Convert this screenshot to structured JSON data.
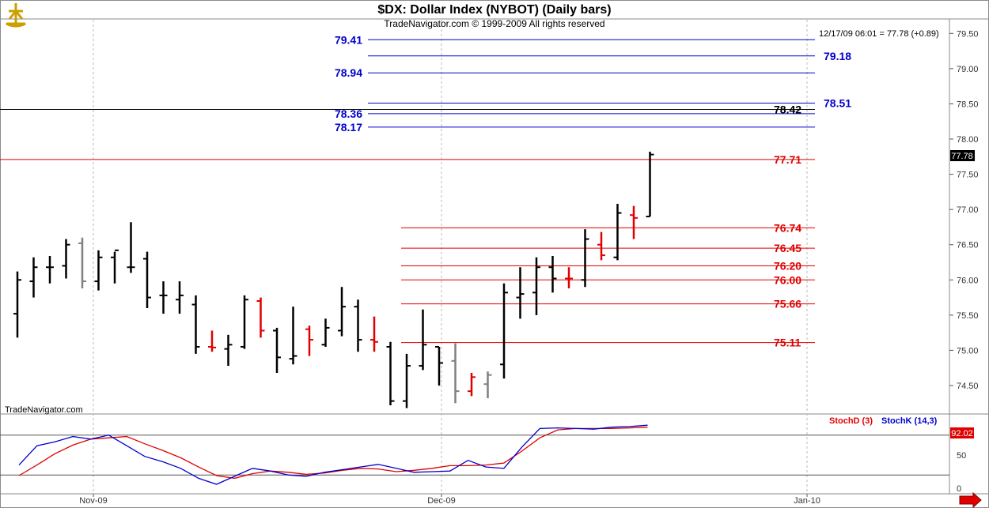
{
  "header": {
    "title": "$DX:  Dollar Index (NYBOT)  (Daily bars)",
    "subtitle": "TradeNavigator.com © 1999-2009 All rights reserved",
    "quote": "12/17/09 06:01 = 77.78 (+0.89)",
    "watermark": "TradeNavigator.com",
    "last_price_tag": "77.78",
    "logo_icon": "trading-ship-icon",
    "scroll_arrow_icon": "right-arrow-icon"
  },
  "colors": {
    "up_bar": "#000000",
    "unchanged_bar": "#808080",
    "down_bar": "#e00000",
    "blue_level": "#0000cc",
    "red_level": "#e00000",
    "black_level": "#000000",
    "stochD": "#e00000",
    "stochK": "#0000cc",
    "price_tag_bg": "#000000",
    "stoch_tag_bg": "#e00000"
  },
  "chart_data": [
    {
      "type": "ohlc",
      "title": "$DX:  Dollar Index (NYBOT)  (Daily bars)",
      "x_tick_labels": [
        "Nov-09",
        "Dec-09",
        "Jan-10"
      ],
      "ylim": [
        74.1,
        79.55
      ],
      "y_ticks": [
        "79.50",
        "79.00",
        "78.50",
        "78.00",
        "77.50",
        "77.00",
        "76.50",
        "76.00",
        "75.50",
        "75.00",
        "74.50"
      ],
      "grid": true,
      "bars": [
        {
          "x": 1,
          "o": 75.52,
          "h": 76.12,
          "l": 75.18,
          "c": 76.0,
          "color": "black"
        },
        {
          "x": 2,
          "o": 75.98,
          "h": 76.32,
          "l": 75.75,
          "c": 76.18,
          "color": "black"
        },
        {
          "x": 3,
          "o": 76.18,
          "h": 76.34,
          "l": 75.95,
          "c": 76.18,
          "color": "black"
        },
        {
          "x": 4,
          "o": 76.2,
          "h": 76.58,
          "l": 76.02,
          "c": 76.5,
          "color": "black"
        },
        {
          "x": 5,
          "o": 76.52,
          "h": 76.6,
          "l": 75.88,
          "c": 75.98,
          "color": "gray"
        },
        {
          "x": 6,
          "o": 75.98,
          "h": 76.42,
          "l": 75.85,
          "c": 76.32,
          "color": "black"
        },
        {
          "x": 7,
          "o": 76.32,
          "h": 76.4,
          "l": 75.95,
          "c": 76.42,
          "color": "black"
        },
        {
          "x": 8,
          "o": 76.18,
          "h": 76.82,
          "l": 76.1,
          "c": 76.18,
          "color": "black"
        },
        {
          "x": 9,
          "o": 76.3,
          "h": 76.4,
          "l": 75.6,
          "c": 75.75,
          "color": "black"
        },
        {
          "x": 10,
          "o": 75.78,
          "h": 75.98,
          "l": 75.52,
          "c": 75.78,
          "color": "black"
        },
        {
          "x": 11,
          "o": 75.72,
          "h": 75.98,
          "l": 75.52,
          "c": 75.78,
          "color": "black"
        },
        {
          "x": 12,
          "o": 75.65,
          "h": 75.78,
          "l": 74.95,
          "c": 75.05,
          "color": "black"
        },
        {
          "x": 13,
          "o": 75.05,
          "h": 75.28,
          "l": 74.98,
          "c": 75.04,
          "color": "red"
        },
        {
          "x": 14,
          "o": 75.02,
          "h": 75.22,
          "l": 74.78,
          "c": 75.08,
          "color": "black"
        },
        {
          "x": 15,
          "o": 75.05,
          "h": 75.78,
          "l": 75.02,
          "c": 75.72,
          "color": "black"
        },
        {
          "x": 16,
          "o": 75.7,
          "h": 75.75,
          "l": 75.18,
          "c": 75.28,
          "color": "red"
        },
        {
          "x": 17,
          "o": 75.28,
          "h": 75.32,
          "l": 74.68,
          "c": 74.9,
          "color": "black"
        },
        {
          "x": 18,
          "o": 74.88,
          "h": 75.62,
          "l": 74.8,
          "c": 74.92,
          "color": "black"
        },
        {
          "x": 19,
          "o": 75.3,
          "h": 75.35,
          "l": 74.92,
          "c": 75.15,
          "color": "red"
        },
        {
          "x": 20,
          "o": 75.08,
          "h": 75.45,
          "l": 75.05,
          "c": 75.32,
          "color": "black"
        },
        {
          "x": 21,
          "o": 75.28,
          "h": 75.9,
          "l": 75.2,
          "c": 75.62,
          "color": "black"
        },
        {
          "x": 22,
          "o": 75.62,
          "h": 75.72,
          "l": 74.98,
          "c": 75.15,
          "color": "black"
        },
        {
          "x": 23,
          "o": 75.15,
          "h": 75.48,
          "l": 74.98,
          "c": 75.12,
          "color": "red"
        },
        {
          "x": 24,
          "o": 75.05,
          "h": 75.12,
          "l": 74.22,
          "c": 74.28,
          "color": "black"
        },
        {
          "x": 25,
          "o": 74.28,
          "h": 74.95,
          "l": 74.18,
          "c": 74.78,
          "color": "black"
        },
        {
          "x": 26,
          "o": 74.78,
          "h": 75.58,
          "l": 74.72,
          "c": 75.08,
          "color": "black"
        },
        {
          "x": 27,
          "o": 75.05,
          "h": 75.05,
          "l": 74.5,
          "c": 74.82,
          "color": "black"
        },
        {
          "x": 28,
          "o": 74.85,
          "h": 75.1,
          "l": 74.25,
          "c": 74.42,
          "color": "gray"
        },
        {
          "x": 29,
          "o": 74.42,
          "h": 74.68,
          "l": 74.35,
          "c": 74.62,
          "color": "red"
        },
        {
          "x": 30,
          "o": 74.52,
          "h": 74.7,
          "l": 74.32,
          "c": 74.65,
          "color": "gray"
        },
        {
          "x": 31,
          "o": 74.8,
          "h": 75.95,
          "l": 74.6,
          "c": 75.82,
          "color": "black"
        },
        {
          "x": 32,
          "o": 75.75,
          "h": 76.18,
          "l": 75.45,
          "c": 75.8,
          "color": "black"
        },
        {
          "x": 33,
          "o": 75.82,
          "h": 76.32,
          "l": 75.5,
          "c": 76.18,
          "color": "black"
        },
        {
          "x": 34,
          "o": 76.18,
          "h": 76.34,
          "l": 75.82,
          "c": 76.02,
          "color": "black"
        },
        {
          "x": 35,
          "o": 76.02,
          "h": 76.18,
          "l": 75.88,
          "c": 76.02,
          "color": "red"
        },
        {
          "x": 36,
          "o": 76.0,
          "h": 76.72,
          "l": 75.9,
          "c": 76.58,
          "color": "black"
        },
        {
          "x": 37,
          "o": 76.5,
          "h": 76.68,
          "l": 76.28,
          "c": 76.35,
          "color": "red"
        },
        {
          "x": 38,
          "o": 76.32,
          "h": 77.08,
          "l": 76.28,
          "c": 76.95,
          "color": "black"
        },
        {
          "x": 39,
          "o": 76.92,
          "h": 77.05,
          "l": 76.58,
          "c": 76.88,
          "color": "red"
        },
        {
          "x": 40,
          "o": 76.9,
          "h": 77.82,
          "l": 76.9,
          "c": 77.78,
          "color": "black"
        }
      ],
      "levels": [
        {
          "value": 79.41,
          "label": "79.41",
          "color": "blue",
          "side": "left",
          "extent": "long"
        },
        {
          "value": 79.18,
          "label": "79.18",
          "color": "blue",
          "side": "right",
          "extent": "medium"
        },
        {
          "value": 78.94,
          "label": "78.94",
          "color": "blue",
          "side": "left",
          "extent": "long"
        },
        {
          "value": 78.51,
          "label": "78.51",
          "color": "blue",
          "side": "right",
          "extent": "medium"
        },
        {
          "value": 78.42,
          "label": "78.42",
          "color": "black",
          "side": "mid",
          "extent": "full"
        },
        {
          "value": 78.36,
          "label": "78.36",
          "color": "blue",
          "side": "left",
          "extent": "long"
        },
        {
          "value": 78.17,
          "label": "78.17",
          "color": "blue",
          "side": "left",
          "extent": "long"
        },
        {
          "value": 77.71,
          "label": "77.71",
          "color": "red",
          "side": "mid",
          "extent": "full"
        },
        {
          "value": 76.74,
          "label": "76.74",
          "color": "red",
          "side": "mid",
          "extent": "short"
        },
        {
          "value": 76.45,
          "label": "76.45",
          "color": "red",
          "side": "mid",
          "extent": "short"
        },
        {
          "value": 76.2,
          "label": "76.20",
          "color": "red",
          "side": "mid",
          "extent": "short"
        },
        {
          "value": 76.0,
          "label": "76.00",
          "color": "red",
          "side": "mid",
          "extent": "short"
        },
        {
          "value": 75.66,
          "label": "75.66",
          "color": "red",
          "side": "mid",
          "extent": "short"
        },
        {
          "value": 75.11,
          "label": "75.11",
          "color": "red",
          "side": "mid",
          "extent": "short"
        }
      ]
    },
    {
      "type": "line",
      "title": "",
      "ylim": [
        0,
        100
      ],
      "y_ticks": [
        "50",
        "0"
      ],
      "reference_lines": [
        80,
        20
      ],
      "last_value_tag": "92.02",
      "series": [
        {
          "name": "StochD (3)",
          "color": "red",
          "values": [
            [
              0,
              19
            ],
            [
              1,
              35
            ],
            [
              2,
              52
            ],
            [
              3,
              65
            ],
            [
              4,
              74
            ],
            [
              5,
              76
            ],
            [
              6,
              78
            ],
            [
              7,
              67
            ],
            [
              8,
              57
            ],
            [
              9,
              46
            ],
            [
              10,
              32
            ],
            [
              11,
              19
            ],
            [
              12,
              15
            ],
            [
              13,
              22
            ],
            [
              14,
              26
            ],
            [
              15,
              24
            ],
            [
              16,
              21
            ],
            [
              17,
              23
            ],
            [
              18,
              27
            ],
            [
              19,
              30
            ],
            [
              20,
              29
            ],
            [
              21,
              25
            ],
            [
              22,
              27
            ],
            [
              23,
              30
            ],
            [
              24,
              34
            ],
            [
              25,
              34
            ],
            [
              26,
              35
            ],
            [
              27,
              38
            ],
            [
              28,
              56
            ],
            [
              29,
              76
            ],
            [
              30,
              88
            ],
            [
              31,
              90
            ],
            [
              32,
              90
            ],
            [
              33,
              90
            ],
            [
              34,
              91
            ],
            [
              35,
              92
            ]
          ]
        },
        {
          "name": "StochK (14,3)",
          "color": "blue",
          "values": [
            [
              0,
              35
            ],
            [
              1,
              64
            ],
            [
              2,
              70
            ],
            [
              3,
              78
            ],
            [
              4,
              74
            ],
            [
              5,
              80
            ],
            [
              6,
              64
            ],
            [
              7,
              48
            ],
            [
              8,
              40
            ],
            [
              9,
              30
            ],
            [
              10,
              15
            ],
            [
              11,
              6
            ],
            [
              12,
              18
            ],
            [
              13,
              30
            ],
            [
              14,
              26
            ],
            [
              15,
              20
            ],
            [
              16,
              18
            ],
            [
              17,
              24
            ],
            [
              18,
              28
            ],
            [
              19,
              32
            ],
            [
              20,
              36
            ],
            [
              21,
              30
            ],
            [
              22,
              24
            ],
            [
              23,
              25
            ],
            [
              24,
              26
            ],
            [
              25,
              42
            ],
            [
              26,
              32
            ],
            [
              27,
              30
            ],
            [
              28,
              62
            ],
            [
              29,
              90
            ],
            [
              30,
              91
            ],
            [
              31,
              90
            ],
            [
              32,
              89
            ],
            [
              33,
              92
            ],
            [
              34,
              93
            ],
            [
              35,
              95
            ]
          ]
        }
      ]
    }
  ],
  "panels": {
    "stoch_labels": {
      "stochD": "StochD (3)",
      "stochK": "StochK (14,3)"
    }
  }
}
